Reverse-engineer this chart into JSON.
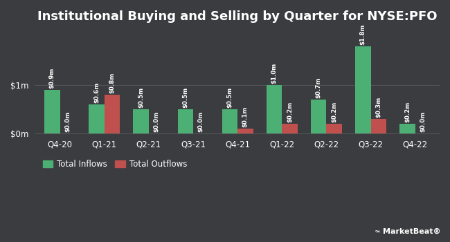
{
  "title": "Institutional Buying and Selling by Quarter for NYSE:PFO",
  "categories": [
    "Q4-20",
    "Q1-21",
    "Q2-21",
    "Q3-21",
    "Q4-21",
    "Q1-22",
    "Q2-22",
    "Q3-22",
    "Q4-22"
  ],
  "inflows": [
    0.9,
    0.6,
    0.5,
    0.5,
    0.5,
    1.0,
    0.7,
    1.8,
    0.2
  ],
  "outflows": [
    0.0,
    0.8,
    0.0,
    0.0,
    0.1,
    0.2,
    0.2,
    0.3,
    0.0
  ],
  "inflow_labels": [
    "$0.9m",
    "$0.6m",
    "$0.5m",
    "$0.5m",
    "$0.5m",
    "$1.0m",
    "$0.7m",
    "$1.8m",
    "$0.2m"
  ],
  "outflow_labels": [
    "$0.0m",
    "$0.8m",
    "$0.0m",
    "$0.0m",
    "$0.1m",
    "$0.2m",
    "$0.2m",
    "$0.3m",
    "$0.0m"
  ],
  "inflow_color": "#4caf74",
  "outflow_color": "#c0504d",
  "bg_color": "#3a3c3f",
  "text_color": "#ffffff",
  "grid_color": "#555555",
  "bar_width": 0.35,
  "ylim": [
    0,
    2.1
  ],
  "yticks": [
    0,
    1.0
  ],
  "ytick_labels": [
    "$0m",
    "$1m"
  ],
  "legend_inflow": "Total Inflows",
  "legend_outflow": "Total Outflows",
  "title_fontsize": 13,
  "label_fontsize": 6.2,
  "tick_fontsize": 8.5,
  "legend_fontsize": 8.5
}
